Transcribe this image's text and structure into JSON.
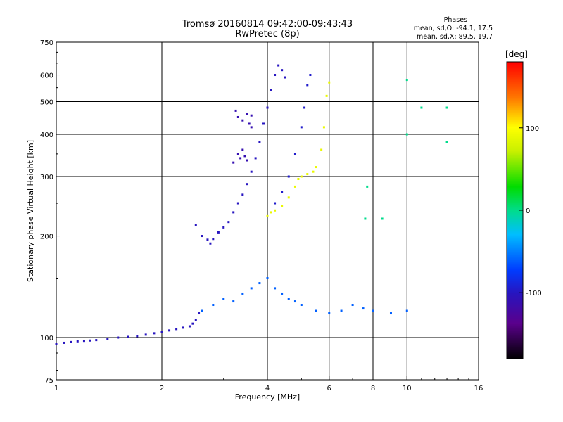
{
  "chart_data": {
    "type": "scatter",
    "title": "Tromsø 20160814 09:42:00-09:43:43",
    "subtitle": "RwPretec (8p)",
    "xlabel": "Frequency [MHz]",
    "ylabel": "Stationary phase Virtual Height [km]",
    "x_scale": "log",
    "y_scale": "log",
    "xlim": [
      1,
      16
    ],
    "ylim": [
      75,
      750
    ],
    "x_ticks": [
      1,
      2,
      4,
      6,
      8,
      10,
      16
    ],
    "y_ticks": [
      75,
      100,
      200,
      300,
      400,
      500,
      600,
      750
    ],
    "x_tick_labels": [
      "1",
      "2",
      "4",
      "6",
      "8",
      "10",
      "16"
    ],
    "y_tick_labels": [
      "75",
      "100",
      "200",
      "300",
      "400",
      "500",
      "600",
      "750"
    ],
    "grid": true,
    "phases_box": {
      "title": "Phases",
      "line_o": "mean, sd,O: -94.1, 17.5",
      "line_x": "mean, sd,X:  89.5, 19.7"
    },
    "colorbar": {
      "unit_label": "[deg]",
      "range": [
        -180,
        180
      ],
      "ticks": [
        100,
        0,
        -100
      ],
      "tick_labels": [
        "100",
        "0",
        "-100"
      ]
    },
    "series": [
      {
        "group": "E-layer trace",
        "phase_deg": -100,
        "points": [
          [
            1.0,
            96
          ],
          [
            1.05,
            96.5
          ],
          [
            1.1,
            97
          ],
          [
            1.15,
            97.5
          ],
          [
            1.2,
            97.8
          ],
          [
            1.25,
            98
          ],
          [
            1.3,
            98.3
          ],
          [
            1.4,
            99
          ],
          [
            1.5,
            100
          ],
          [
            1.6,
            100.5
          ],
          [
            1.7,
            101
          ],
          [
            1.8,
            102
          ],
          [
            1.9,
            103
          ],
          [
            2.0,
            104
          ],
          [
            2.1,
            105
          ],
          [
            2.2,
            106
          ],
          [
            2.3,
            107
          ],
          [
            2.4,
            108
          ],
          [
            2.45,
            110
          ],
          [
            2.5,
            113
          ],
          [
            2.55,
            118
          ]
        ]
      },
      {
        "group": "F-layer O trace",
        "phase_deg": -100,
        "points": [
          [
            2.5,
            215
          ],
          [
            2.6,
            200
          ],
          [
            2.7,
            195
          ],
          [
            2.75,
            190
          ],
          [
            2.8,
            196
          ],
          [
            2.9,
            205
          ],
          [
            3.0,
            212
          ],
          [
            3.1,
            220
          ],
          [
            3.2,
            235
          ],
          [
            3.3,
            250
          ],
          [
            3.4,
            265
          ],
          [
            3.5,
            285
          ],
          [
            3.6,
            310
          ],
          [
            3.7,
            340
          ],
          [
            3.8,
            380
          ],
          [
            3.9,
            430
          ],
          [
            4.0,
            480
          ],
          [
            4.1,
            540
          ],
          [
            4.2,
            600
          ],
          [
            4.3,
            640
          ],
          [
            4.4,
            620
          ],
          [
            4.5,
            590
          ]
        ]
      },
      {
        "group": "F-layer O scatter",
        "phase_deg": -110,
        "points": [
          [
            3.2,
            330
          ],
          [
            3.3,
            350
          ],
          [
            3.35,
            340
          ],
          [
            3.4,
            360
          ],
          [
            3.45,
            345
          ],
          [
            3.5,
            335
          ],
          [
            3.3,
            450
          ],
          [
            3.4,
            440
          ],
          [
            3.5,
            460
          ],
          [
            3.6,
            455
          ],
          [
            3.25,
            470
          ],
          [
            3.55,
            430
          ],
          [
            3.6,
            420
          ]
        ]
      },
      {
        "group": "F-layer X trace",
        "phase_deg": 90,
        "points": [
          [
            4.0,
            230
          ],
          [
            4.1,
            235
          ],
          [
            4.2,
            238
          ],
          [
            4.4,
            245
          ],
          [
            4.6,
            260
          ],
          [
            4.8,
            280
          ],
          [
            4.9,
            295
          ],
          [
            5.0,
            300
          ],
          [
            5.2,
            305
          ],
          [
            5.4,
            310
          ],
          [
            5.5,
            320
          ],
          [
            5.7,
            360
          ],
          [
            5.8,
            420
          ],
          [
            5.9,
            520
          ],
          [
            6.0,
            570
          ]
        ]
      },
      {
        "group": "F-layer upper trace",
        "phase_deg": -95,
        "points": [
          [
            4.2,
            250
          ],
          [
            4.4,
            270
          ],
          [
            4.6,
            300
          ],
          [
            4.8,
            350
          ],
          [
            5.0,
            420
          ],
          [
            5.1,
            480
          ],
          [
            5.2,
            560
          ],
          [
            5.3,
            600
          ]
        ]
      },
      {
        "group": "Sporadic / multipath scatter",
        "phase_deg": -60,
        "points": [
          [
            2.6,
            120
          ],
          [
            2.8,
            125
          ],
          [
            3.0,
            130
          ],
          [
            3.2,
            128
          ],
          [
            3.4,
            135
          ],
          [
            3.6,
            140
          ],
          [
            3.8,
            145
          ],
          [
            4.0,
            150
          ],
          [
            4.2,
            140
          ],
          [
            4.4,
            135
          ],
          [
            4.6,
            130
          ],
          [
            4.8,
            128
          ],
          [
            5.0,
            125
          ],
          [
            5.5,
            120
          ],
          [
            6.0,
            118
          ],
          [
            6.5,
            120
          ],
          [
            7.0,
            125
          ],
          [
            7.5,
            122
          ],
          [
            8.0,
            120
          ],
          [
            9.0,
            118
          ],
          [
            10.0,
            120
          ]
        ]
      },
      {
        "group": "Isolated echoes",
        "phase_deg": 0,
        "points": [
          [
            7.6,
            225
          ],
          [
            8.5,
            225
          ],
          [
            10.0,
            580
          ],
          [
            10.0,
            400
          ],
          [
            11.0,
            480
          ],
          [
            13.0,
            480
          ],
          [
            13.0,
            380
          ],
          [
            7.7,
            280
          ]
        ]
      }
    ]
  }
}
